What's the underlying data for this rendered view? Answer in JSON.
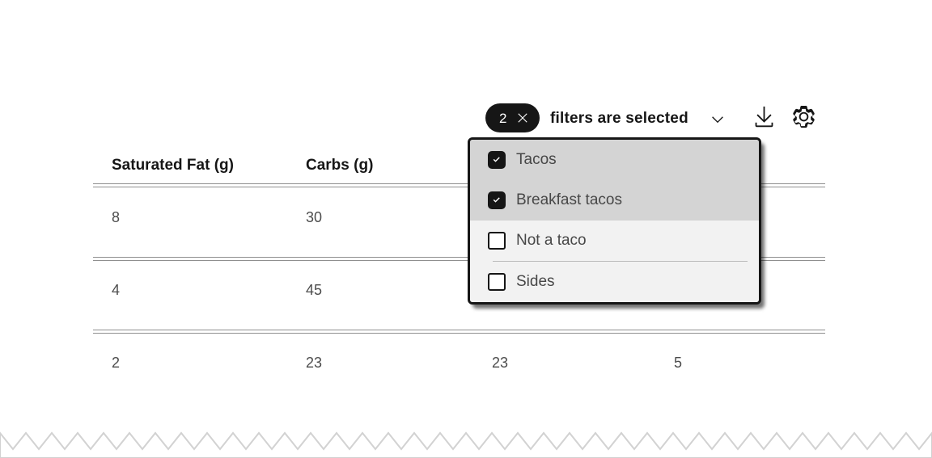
{
  "toolbar": {
    "filter_count": "2",
    "filters_label": "filters are selected"
  },
  "filter_menu": {
    "items": [
      {
        "label": "Tacos",
        "checked": true
      },
      {
        "label": "Breakfast tacos",
        "checked": true
      },
      {
        "label": "Not a taco",
        "checked": false
      },
      {
        "label": "Sides",
        "checked": false
      }
    ]
  },
  "table": {
    "columns": [
      {
        "label": "Saturated Fat (g)"
      },
      {
        "label": "Carbs (g)"
      },
      {
        "label": ""
      },
      {
        "label": ""
      }
    ],
    "rows": [
      {
        "cells": [
          "8",
          "30",
          "",
          ""
        ]
      },
      {
        "cells": [
          "4",
          "45",
          "",
          ""
        ]
      },
      {
        "cells": [
          "2",
          "23",
          "23",
          "5"
        ]
      }
    ]
  },
  "colors": {
    "ink": "#161616",
    "value_text": "#4c4c4c",
    "menu_selected_bg": "#d4d4d4",
    "menu_bg": "#f2f2f2",
    "rule": "#8f8f8f",
    "tag_bg": "#161616"
  }
}
